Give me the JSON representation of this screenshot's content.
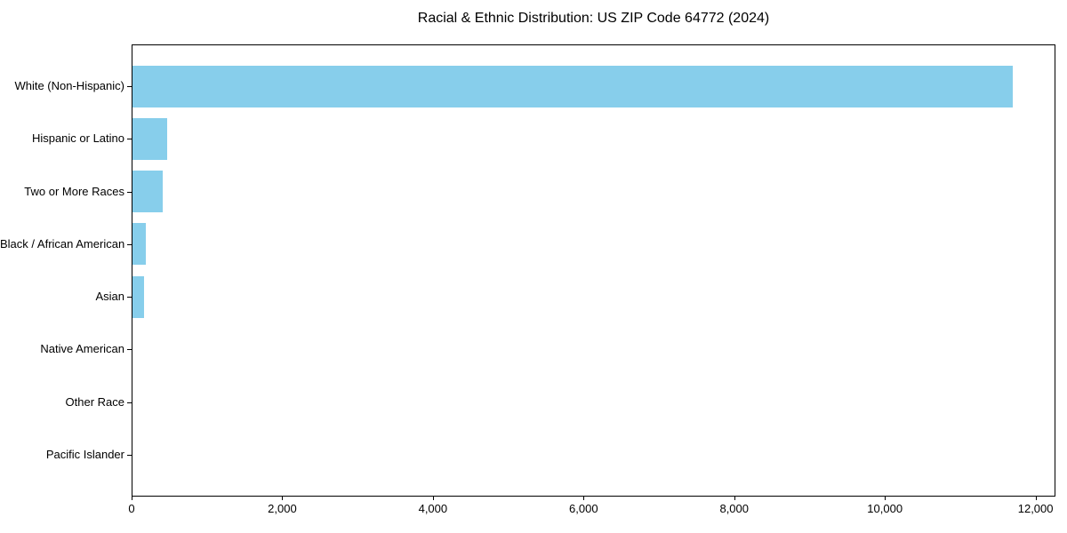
{
  "chart_data": {
    "type": "bar",
    "orientation": "horizontal",
    "title": "Racial & Ethnic Distribution: US ZIP Code 64772 (2024)",
    "categories": [
      "White (Non-Hispanic)",
      "Hispanic or Latino",
      "Two or More Races",
      "Black / African American",
      "Asian",
      "Native American",
      "Other Race",
      "Pacific Islander"
    ],
    "values": [
      11680,
      455,
      400,
      180,
      150,
      0,
      0,
      0
    ],
    "xlabel": "",
    "ylabel": "",
    "xlim": [
      0,
      12264
    ],
    "xticks": [
      0,
      2000,
      4000,
      6000,
      8000,
      10000,
      12000
    ],
    "xtick_labels": [
      "0",
      "2,000",
      "4,000",
      "6,000",
      "8,000",
      "10,000",
      "12,000"
    ],
    "bar_color": "#87CEEB",
    "spine_color": "#000000",
    "background_color": "#ffffff",
    "grid": false,
    "legend": null
  }
}
